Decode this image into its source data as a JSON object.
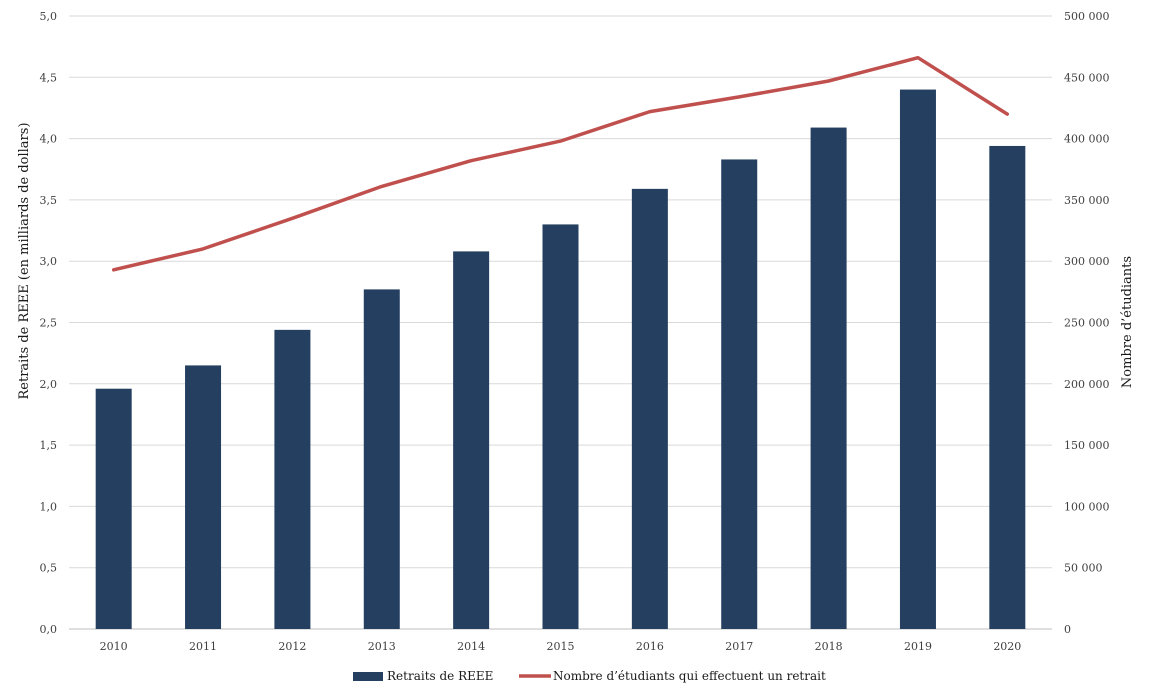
{
  "chart_data": {
    "type": "bar+line",
    "categories": [
      "2010",
      "2011",
      "2012",
      "2013",
      "2014",
      "2015",
      "2016",
      "2017",
      "2018",
      "2019",
      "2020"
    ],
    "series": [
      {
        "name": "Retraits de REEE",
        "type": "bar",
        "axis": "left",
        "color": "#243F60",
        "values": [
          1.96,
          2.15,
          2.44,
          2.77,
          3.08,
          3.3,
          3.59,
          3.83,
          4.09,
          4.4,
          3.94
        ]
      },
      {
        "name": "Nombre d’étudiants qui effectuent un retrait",
        "type": "line",
        "axis": "right",
        "color": "#C0504D",
        "values": [
          293000,
          310000,
          335000,
          361000,
          382000,
          398000,
          422000,
          434000,
          447000,
          466000,
          420000
        ]
      }
    ],
    "y_left": {
      "label": "Retraits de REEE (en milliards de dollars)",
      "lim": [
        0,
        5
      ],
      "ticks": [
        "0,0",
        "0,5",
        "1,0",
        "1,5",
        "2,0",
        "2,5",
        "3,0",
        "3,5",
        "4,0",
        "4,5",
        "5,0"
      ]
    },
    "y_right": {
      "label": "Nombre d’étudiants",
      "lim": [
        0,
        500000
      ],
      "ticks": [
        "0",
        "50 000",
        "100 000",
        "150 000",
        "200 000",
        "250 000",
        "300 000",
        "350 000",
        "400 000",
        "450 000",
        "500 000"
      ]
    },
    "grid": true,
    "legend_position": "bottom-center"
  }
}
